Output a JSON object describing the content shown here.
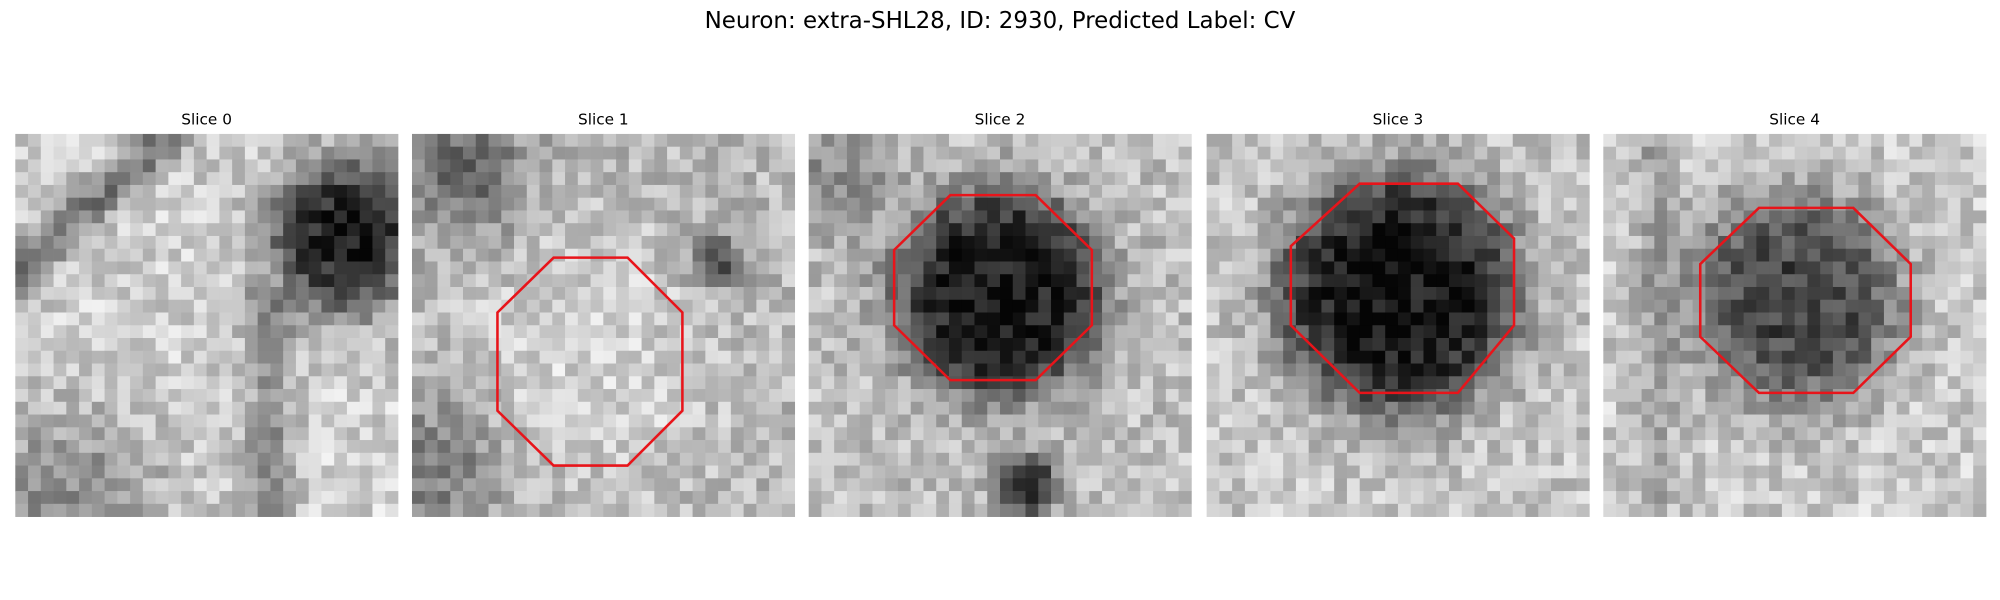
{
  "header": {
    "title": "Neuron: extra-SHL28, ID: 2930, Predicted Label: CV"
  },
  "panels": [
    {
      "title": "Slice 0"
    },
    {
      "title": "Slice 1"
    },
    {
      "title": "Slice 2"
    },
    {
      "title": "Slice 3"
    },
    {
      "title": "Slice 4"
    }
  ]
}
